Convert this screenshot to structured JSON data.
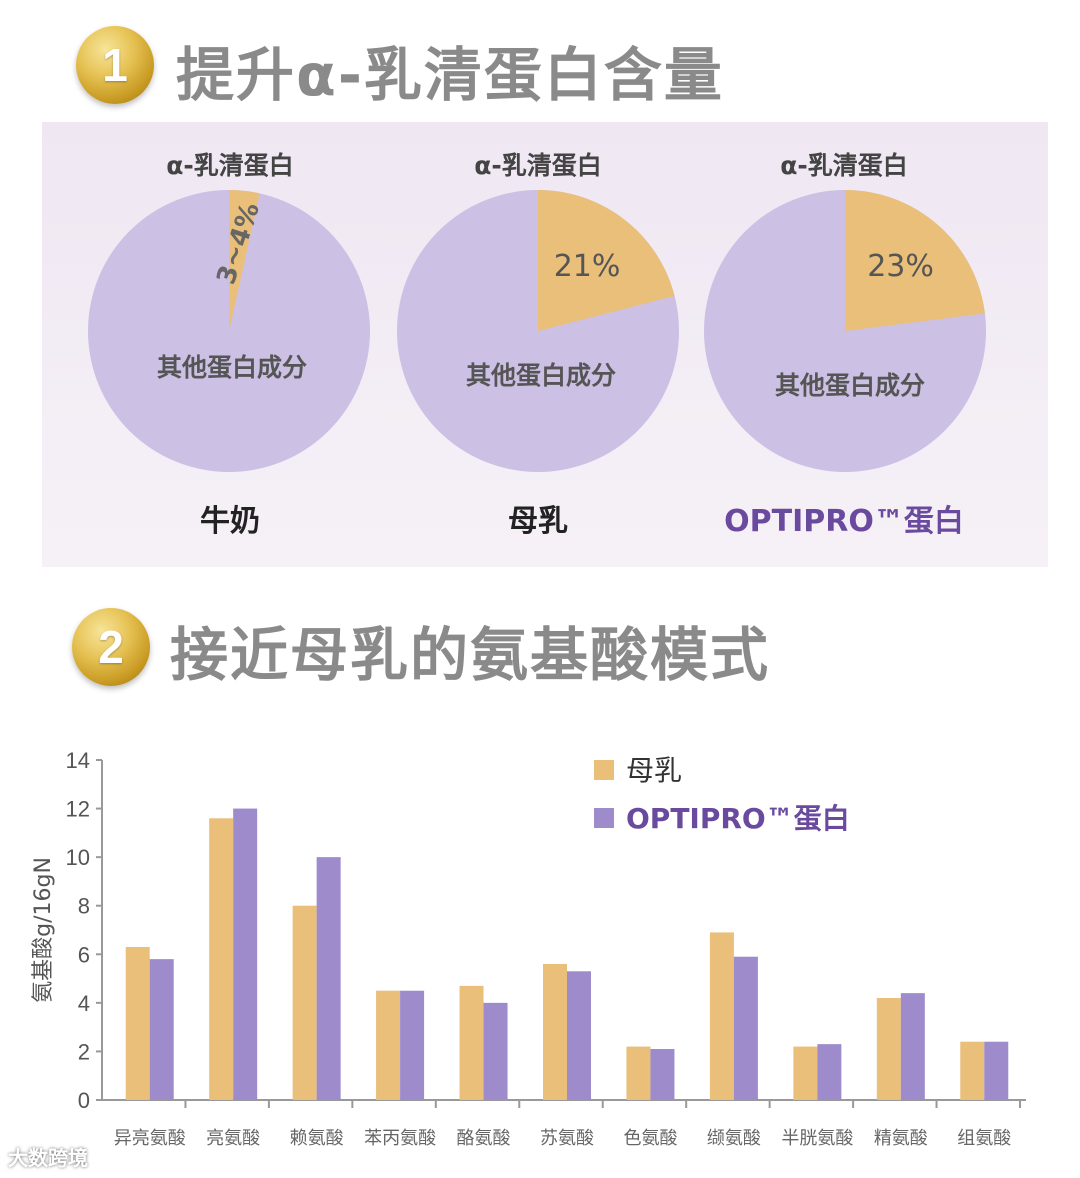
{
  "section1": {
    "badge": "1",
    "title": "提升α-乳清蛋白含量"
  },
  "pies": [
    {
      "top_label": "α-乳清蛋白",
      "slice_label": "3~4%",
      "slice_percent": 3.5,
      "rest_label": "其他蛋白成分",
      "name": "牛奶"
    },
    {
      "top_label": "α-乳清蛋白",
      "slice_label": "21%",
      "slice_percent": 21,
      "rest_label": "其他蛋白成分",
      "name": "母乳"
    },
    {
      "top_label": "α-乳清蛋白",
      "slice_label": "23%",
      "slice_percent": 23,
      "rest_label": "其他蛋白成分",
      "name": "OPTIPRO™蛋白"
    }
  ],
  "section2": {
    "badge": "2",
    "title": "接近母乳的氨基酸模式"
  },
  "colors": {
    "breastmilk": "#e9bf79",
    "optipro": "#9d8bcc",
    "pie_rest": "#ccc0e4",
    "pie_slice": "#e9bf79"
  },
  "chart_data": {
    "type": "bar",
    "ylabel": "氨基酸g/16gN",
    "ylim": [
      0,
      14
    ],
    "yticks": [
      "0",
      "2",
      "4",
      "6",
      "8",
      "10",
      "12",
      "14"
    ],
    "categories": [
      "异亮氨酸",
      "亮氨酸",
      "赖氨酸",
      "苯丙氨酸",
      "酪氨酸",
      "苏氨酸",
      "色氨酸",
      "缬氨酸",
      "半胱氨酸",
      "精氨酸",
      "组氨酸"
    ],
    "series": [
      {
        "name": "母乳",
        "values": [
          6.3,
          11.6,
          8.0,
          4.5,
          4.7,
          5.6,
          2.2,
          6.9,
          2.2,
          4.2,
          2.4
        ]
      },
      {
        "name": "OPTIPRO™蛋白",
        "values": [
          5.8,
          12.0,
          10.0,
          4.5,
          4.0,
          5.3,
          2.1,
          5.9,
          2.3,
          4.4,
          2.4
        ]
      }
    ]
  },
  "watermark": "大数跨境"
}
